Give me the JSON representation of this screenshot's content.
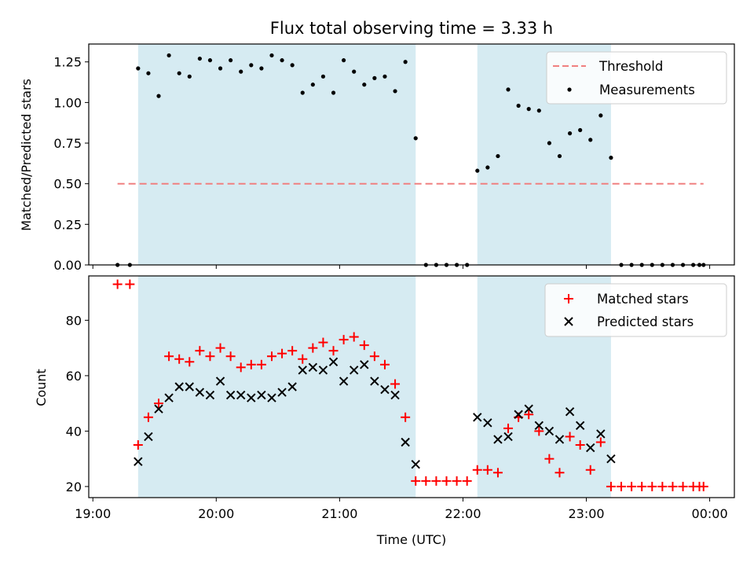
{
  "chart_data": [
    {
      "type": "scatter",
      "title": "Flux total observing time = 3.33 h",
      "xlabel": "",
      "ylabel": "Matched/Predicted stars",
      "ylim": [
        0,
        1.36
      ],
      "yticks": [
        0.0,
        0.25,
        0.5,
        0.75,
        1.0,
        1.25
      ],
      "ytick_labels": [
        "0.00",
        "0.25",
        "0.50",
        "0.75",
        "1.00",
        "1.25"
      ],
      "xlim": [
        "18:58",
        "00:12"
      ],
      "legend_position": "top-right",
      "shaded_intervals": [
        [
          "19:22",
          "21:37"
        ],
        [
          "22:07",
          "23:12"
        ]
      ],
      "shade_color": "#add8e6",
      "threshold": {
        "name": "Threshold",
        "value": 0.5,
        "x_range": [
          "19:12",
          "23:57"
        ],
        "color": "#f08080"
      },
      "series": [
        {
          "name": "Measurements",
          "color": "#000000",
          "x": [
            "19:12",
            "19:18",
            "19:22",
            "19:27",
            "19:32",
            "19:37",
            "19:42",
            "19:47",
            "19:52",
            "19:57",
            "20:02",
            "20:07",
            "20:12",
            "20:17",
            "20:22",
            "20:27",
            "20:32",
            "20:37",
            "20:42",
            "20:47",
            "20:52",
            "20:57",
            "21:02",
            "21:07",
            "21:12",
            "21:17",
            "21:22",
            "21:27",
            "21:32",
            "21:37",
            "21:42",
            "21:47",
            "21:52",
            "21:57",
            "22:02",
            "22:07",
            "22:12",
            "22:17",
            "22:22",
            "22:27",
            "22:32",
            "22:37",
            "22:42",
            "22:47",
            "22:52",
            "22:57",
            "23:02",
            "23:07",
            "23:12",
            "23:17",
            "23:22",
            "23:27",
            "23:32",
            "23:37",
            "23:42",
            "23:47",
            "23:52",
            "23:55",
            "23:57"
          ],
          "y": [
            0.0,
            0.0,
            1.21,
            1.18,
            1.04,
            1.29,
            1.18,
            1.16,
            1.27,
            1.26,
            1.21,
            1.26,
            1.19,
            1.23,
            1.21,
            1.29,
            1.26,
            1.23,
            1.06,
            1.11,
            1.16,
            1.06,
            1.26,
            1.19,
            1.11,
            1.15,
            1.16,
            1.07,
            1.25,
            0.78,
            0.0,
            0.0,
            0.0,
            0.0,
            0.0,
            0.58,
            0.6,
            0.67,
            1.08,
            0.98,
            0.96,
            0.95,
            0.75,
            0.67,
            0.81,
            0.83,
            0.77,
            0.92,
            0.66,
            0.0,
            0.0,
            0.0,
            0.0,
            0.0,
            0.0,
            0.0,
            0.0,
            0.0,
            0.0
          ]
        }
      ]
    },
    {
      "type": "scatter",
      "title": "",
      "xlabel": "Time (UTC)",
      "ylabel": "Count",
      "ylim": [
        16,
        96
      ],
      "yticks": [
        20,
        40,
        60,
        80
      ],
      "ytick_labels": [
        "20",
        "40",
        "60",
        "80"
      ],
      "xlim": [
        "18:58",
        "00:12"
      ],
      "xticks": [
        "19:00",
        "20:00",
        "21:00",
        "22:00",
        "23:00",
        "00:00"
      ],
      "legend_position": "top-right",
      "shaded_intervals": [
        [
          "19:22",
          "21:37"
        ],
        [
          "22:07",
          "23:12"
        ]
      ],
      "shade_color": "#add8e6",
      "series": [
        {
          "name": "Matched stars",
          "color": "#ff0000",
          "marker": "plus",
          "x": [
            "19:12",
            "19:18",
            "19:22",
            "19:27",
            "19:32",
            "19:37",
            "19:42",
            "19:47",
            "19:52",
            "19:57",
            "20:02",
            "20:07",
            "20:12",
            "20:17",
            "20:22",
            "20:27",
            "20:32",
            "20:37",
            "20:42",
            "20:47",
            "20:52",
            "20:57",
            "21:02",
            "21:07",
            "21:12",
            "21:17",
            "21:22",
            "21:27",
            "21:32",
            "21:37",
            "21:42",
            "21:47",
            "21:52",
            "21:57",
            "22:02",
            "22:07",
            "22:12",
            "22:17",
            "22:22",
            "22:27",
            "22:32",
            "22:37",
            "22:42",
            "22:47",
            "22:52",
            "22:57",
            "23:02",
            "23:07",
            "23:12",
            "23:17",
            "23:22",
            "23:27",
            "23:32",
            "23:37",
            "23:42",
            "23:47",
            "23:52",
            "23:55",
            "23:57"
          ],
          "y": [
            93,
            93,
            35,
            45,
            50,
            67,
            66,
            65,
            69,
            67,
            70,
            67,
            63,
            64,
            64,
            67,
            68,
            69,
            66,
            70,
            72,
            69,
            73,
            74,
            71,
            67,
            64,
            57,
            45,
            22,
            22,
            22,
            22,
            22,
            22,
            26,
            26,
            25,
            41,
            45,
            46,
            40,
            30,
            25,
            38,
            35,
            26,
            36,
            20,
            20,
            20,
            20,
            20,
            20,
            20,
            20,
            20,
            20,
            20
          ]
        },
        {
          "name": "Predicted stars",
          "color": "#000000",
          "marker": "x",
          "x": [
            "19:22",
            "19:27",
            "19:32",
            "19:37",
            "19:42",
            "19:47",
            "19:52",
            "19:57",
            "20:02",
            "20:07",
            "20:12",
            "20:17",
            "20:22",
            "20:27",
            "20:32",
            "20:37",
            "20:42",
            "20:47",
            "20:52",
            "20:57",
            "21:02",
            "21:07",
            "21:12",
            "21:17",
            "21:22",
            "21:27",
            "21:32",
            "21:37",
            "22:07",
            "22:12",
            "22:17",
            "22:22",
            "22:27",
            "22:32",
            "22:37",
            "22:42",
            "22:47",
            "22:52",
            "22:57",
            "23:02",
            "23:07",
            "23:12"
          ],
          "y": [
            29,
            38,
            48,
            52,
            56,
            56,
            54,
            53,
            58,
            53,
            53,
            52,
            53,
            52,
            54,
            56,
            62,
            63,
            62,
            65,
            58,
            62,
            64,
            58,
            55,
            53,
            36,
            28,
            45,
            43,
            37,
            38,
            46,
            48,
            42,
            40,
            37,
            47,
            42,
            34,
            39,
            30
          ]
        }
      ]
    }
  ]
}
